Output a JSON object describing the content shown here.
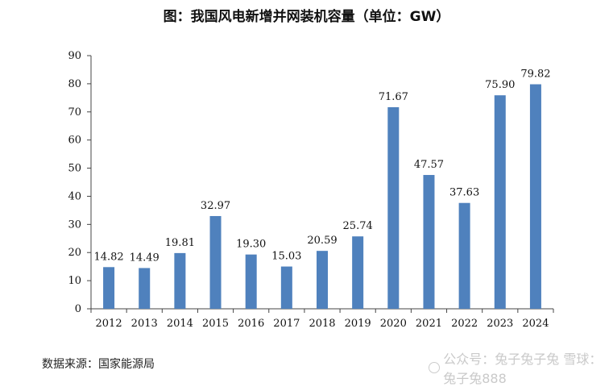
{
  "title": "图：我国风电新增并网装机容量（单位：GW）",
  "source": "数据来源：国家能源局",
  "watermark": "公众号：兔子兔子兔 雪球：兔子兔888",
  "colors": {
    "bar": "#4f81bd",
    "axis": "#444444",
    "text": "#111111"
  },
  "chart_data": {
    "type": "bar",
    "title": "图：我国风电新增并网装机容量（单位：GW）",
    "xlabel": "",
    "ylabel": "",
    "ylim": [
      0,
      90
    ],
    "yticks": [
      "0",
      "10",
      "20",
      "30",
      "40",
      "50",
      "60",
      "70",
      "80",
      "90"
    ],
    "grid": false,
    "legend": "none",
    "categories": [
      "2012",
      "2013",
      "2014",
      "2015",
      "2016",
      "2017",
      "2018",
      "2019",
      "2020",
      "2021",
      "2022",
      "2023",
      "2024"
    ],
    "values": [
      14.82,
      14.49,
      19.81,
      32.97,
      19.3,
      15.03,
      20.59,
      25.74,
      71.67,
      47.57,
      37.63,
      75.9,
      79.82
    ],
    "labels": [
      "14.82",
      "14.49",
      "19.81",
      "32.97",
      "19.30",
      "15.03",
      "20.59",
      "25.74",
      "71.67",
      "47.57",
      "37.63",
      "75.90",
      "79.82"
    ]
  }
}
